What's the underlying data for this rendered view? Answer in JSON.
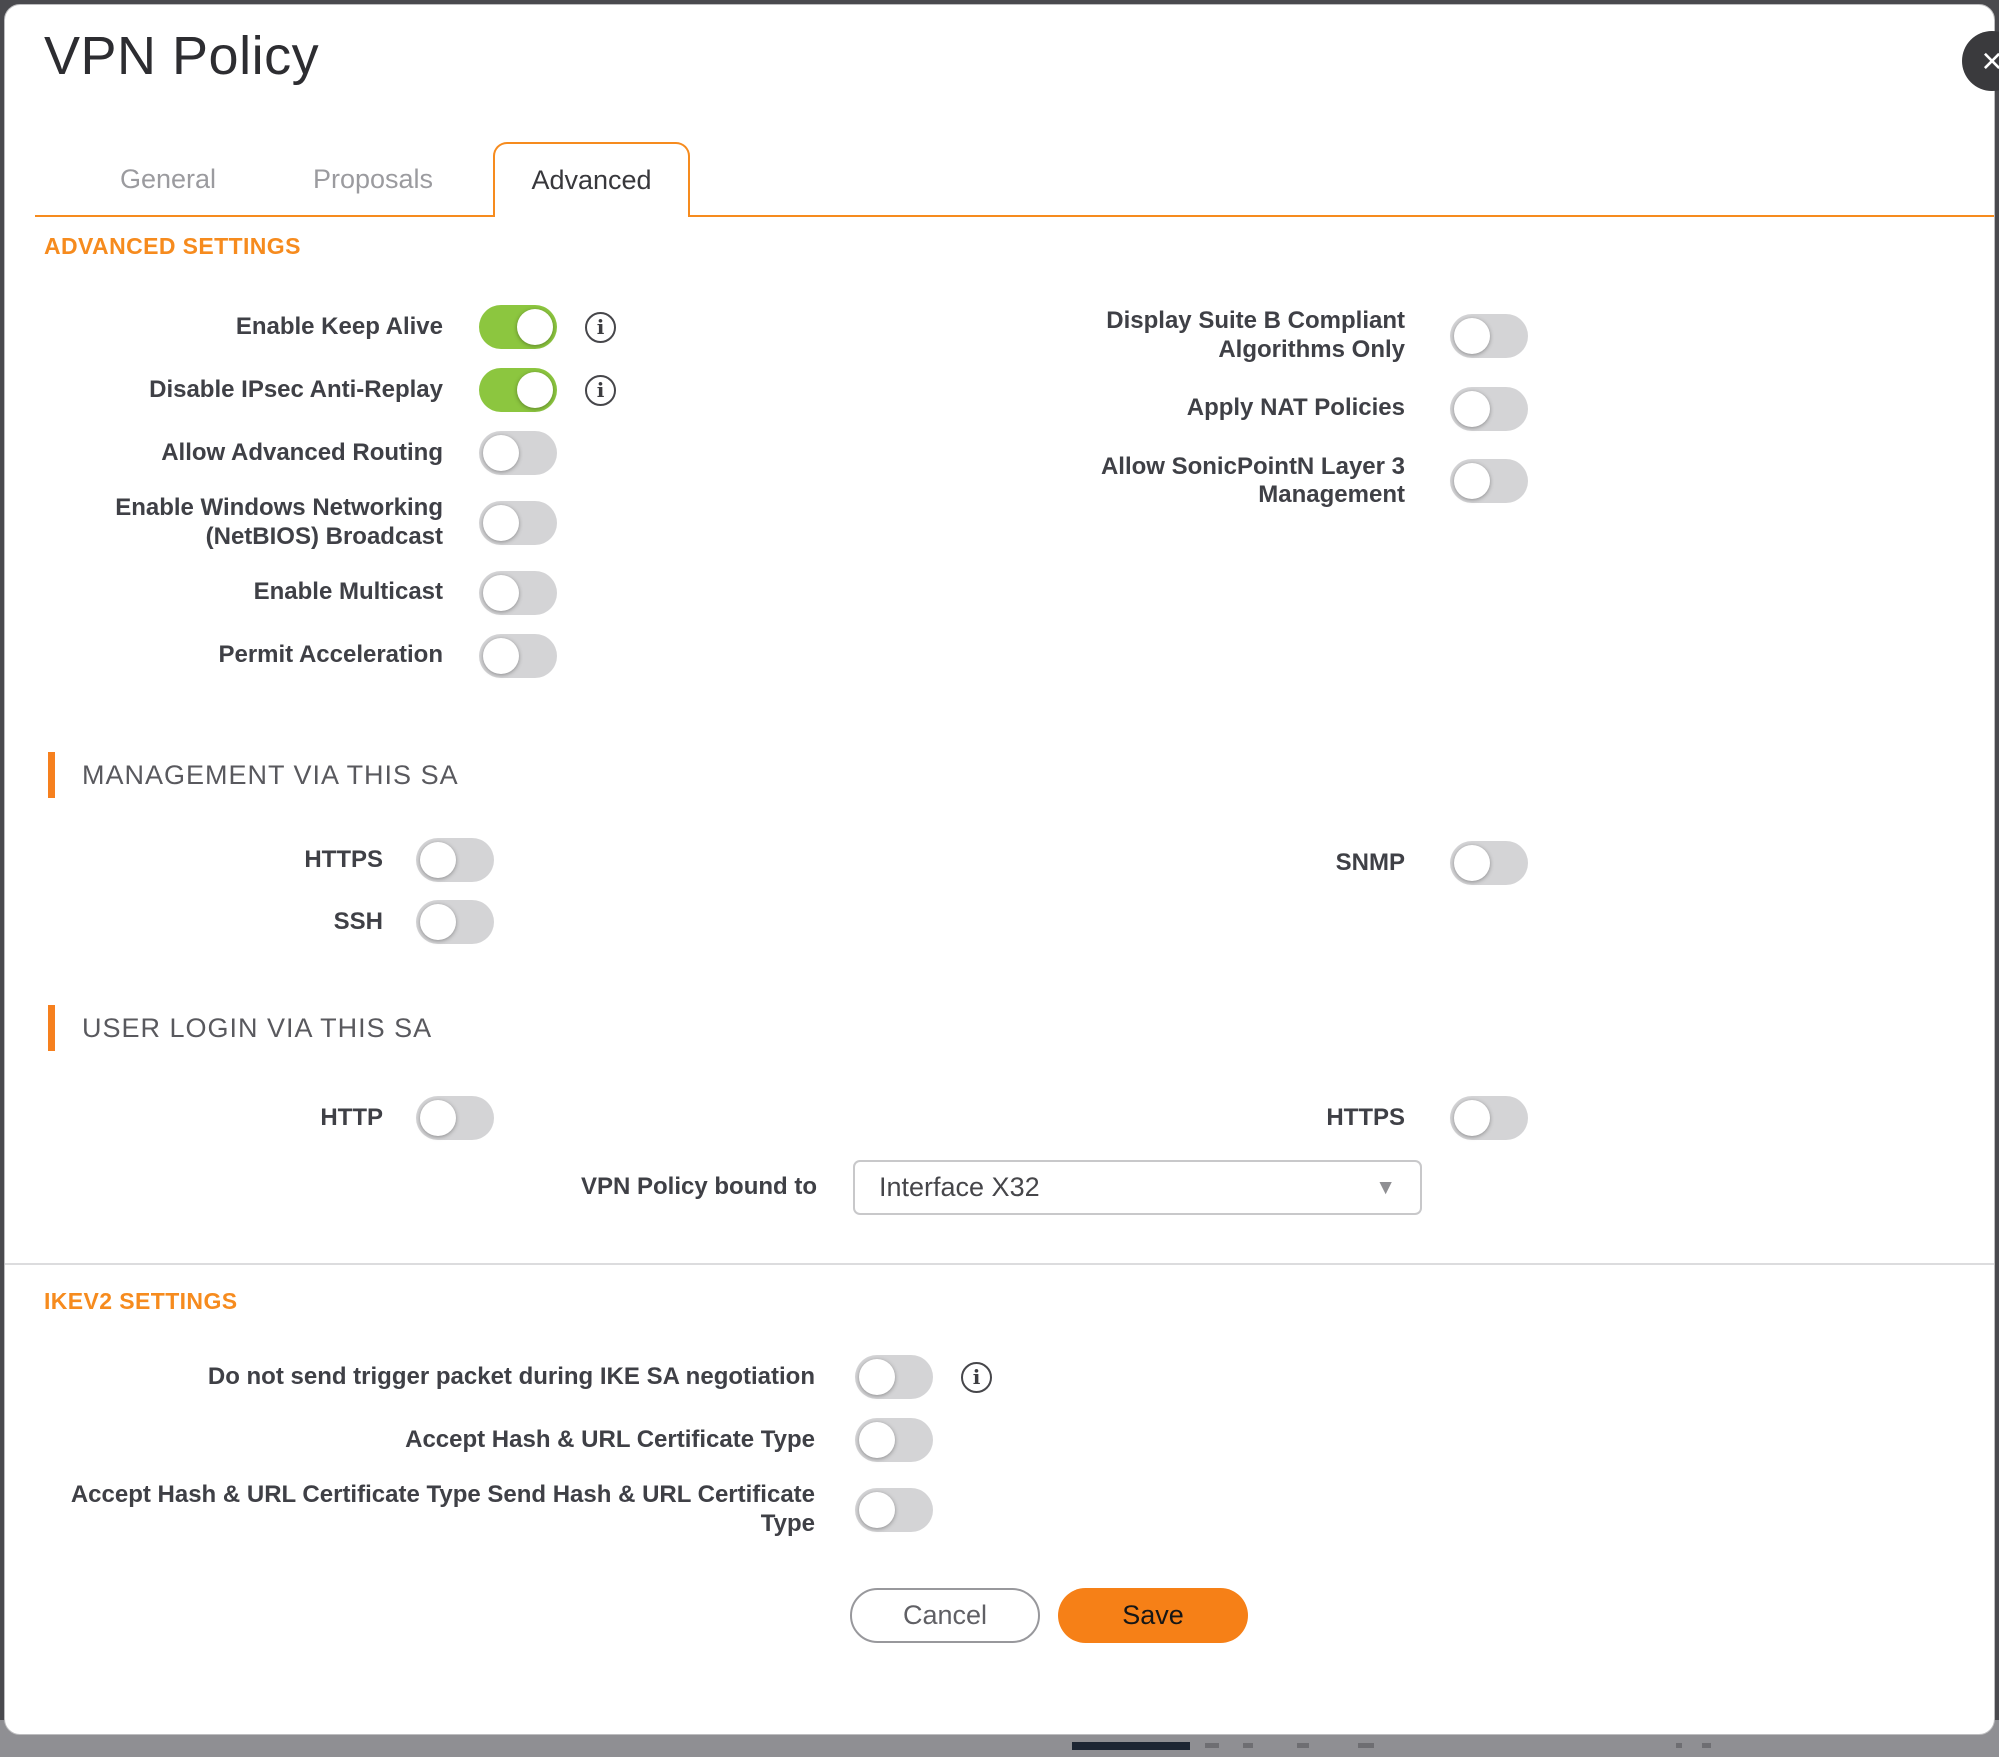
{
  "dialog": {
    "title": "VPN Policy"
  },
  "icons": {
    "close": "×",
    "info": "i",
    "dropdown_caret": "▼"
  },
  "tabs": [
    {
      "label": "General"
    },
    {
      "label": "Proposals"
    },
    {
      "label": "Advanced"
    }
  ],
  "colors": {
    "accent_orange": "#F68B1E",
    "toggle_on_green": "#8CC63F",
    "toggle_off_gray": "#D4D4D6",
    "save_button_orange": "#F68017"
  },
  "sections": {
    "advanced_settings": {
      "title": "ADVANCED SETTINGS",
      "left_toggles": [
        {
          "label": "Enable Keep Alive",
          "state": "on",
          "info": true
        },
        {
          "label": "Disable IPsec Anti-Replay",
          "state": "on",
          "info": true
        },
        {
          "label": "Allow Advanced Routing",
          "state": "off"
        },
        {
          "label": "Enable Windows Networking (NetBIOS) Broadcast",
          "state": "off"
        },
        {
          "label": "Enable Multicast",
          "state": "off"
        },
        {
          "label": "Permit Acceleration",
          "state": "off"
        }
      ],
      "right_toggles": [
        {
          "label": "Display Suite B Compliant Algorithms Only",
          "state": "off"
        },
        {
          "label": "Apply NAT Policies",
          "state": "off"
        },
        {
          "label": "Allow SonicPointN Layer 3 Management",
          "state": "off"
        }
      ]
    },
    "management_via_sa": {
      "title": "MANAGEMENT VIA THIS SA",
      "left_toggles": [
        {
          "label": "HTTPS",
          "state": "off"
        },
        {
          "label": "SSH",
          "state": "off"
        }
      ],
      "right_toggles": [
        {
          "label": "SNMP",
          "state": "off"
        }
      ]
    },
    "user_login_via_sa": {
      "title": "USER LOGIN VIA THIS SA",
      "left_toggles": [
        {
          "label": "HTTP",
          "state": "off"
        }
      ],
      "right_toggles": [
        {
          "label": "HTTPS",
          "state": "off"
        }
      ],
      "bound_to": {
        "label": "VPN Policy bound to",
        "value": "Interface X32"
      }
    },
    "ikev2": {
      "title": "IKEV2 SETTINGS",
      "toggles": [
        {
          "label": "Do not send trigger packet during IKE SA negotiation",
          "state": "off",
          "info": true
        },
        {
          "label": "Accept Hash & URL Certificate Type",
          "state": "off"
        },
        {
          "label": "Accept Hash & URL Certificate Type Send Hash & URL Certificate Type",
          "state": "off"
        }
      ]
    }
  },
  "footer": {
    "cancel_label": "Cancel",
    "save_label": "Save"
  }
}
